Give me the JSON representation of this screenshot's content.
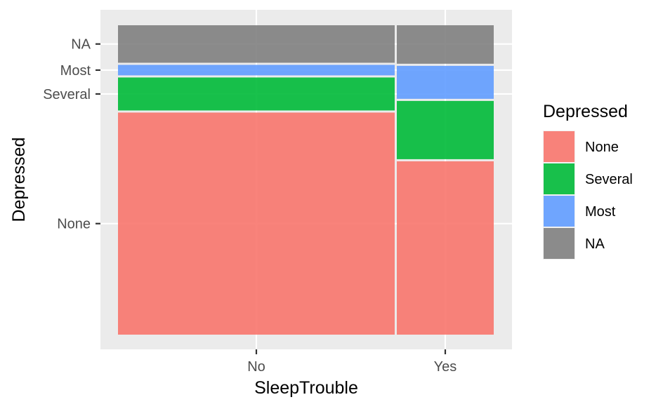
{
  "chart_data": {
    "type": "mosaic",
    "xlabel": "SleepTrouble",
    "ylabel": "Depressed",
    "categories": [
      "No",
      "Yes"
    ],
    "x_proportions": [
      0.742,
      0.258
    ],
    "levels": [
      "None",
      "Several",
      "Most",
      "NA"
    ],
    "colors": [
      "#F8766D",
      "#00BA38",
      "#619CFF",
      "#7F7F7F"
    ],
    "series": [
      {
        "name": "None",
        "values": [
          0.7246,
          0.5671
        ]
      },
      {
        "name": "Several",
        "values": [
          0.1134,
          0.1951
        ]
      },
      {
        "name": "Most",
        "values": [
          0.0408,
          0.1134
        ]
      },
      {
        "name": "NA",
        "values": [
          0.1212,
          0.1244
        ]
      }
    ],
    "y_tick_labels": [
      "None",
      "Several",
      "Most",
      "NA"
    ],
    "legend": {
      "title": "Depressed",
      "position": "right"
    },
    "grid": true
  }
}
